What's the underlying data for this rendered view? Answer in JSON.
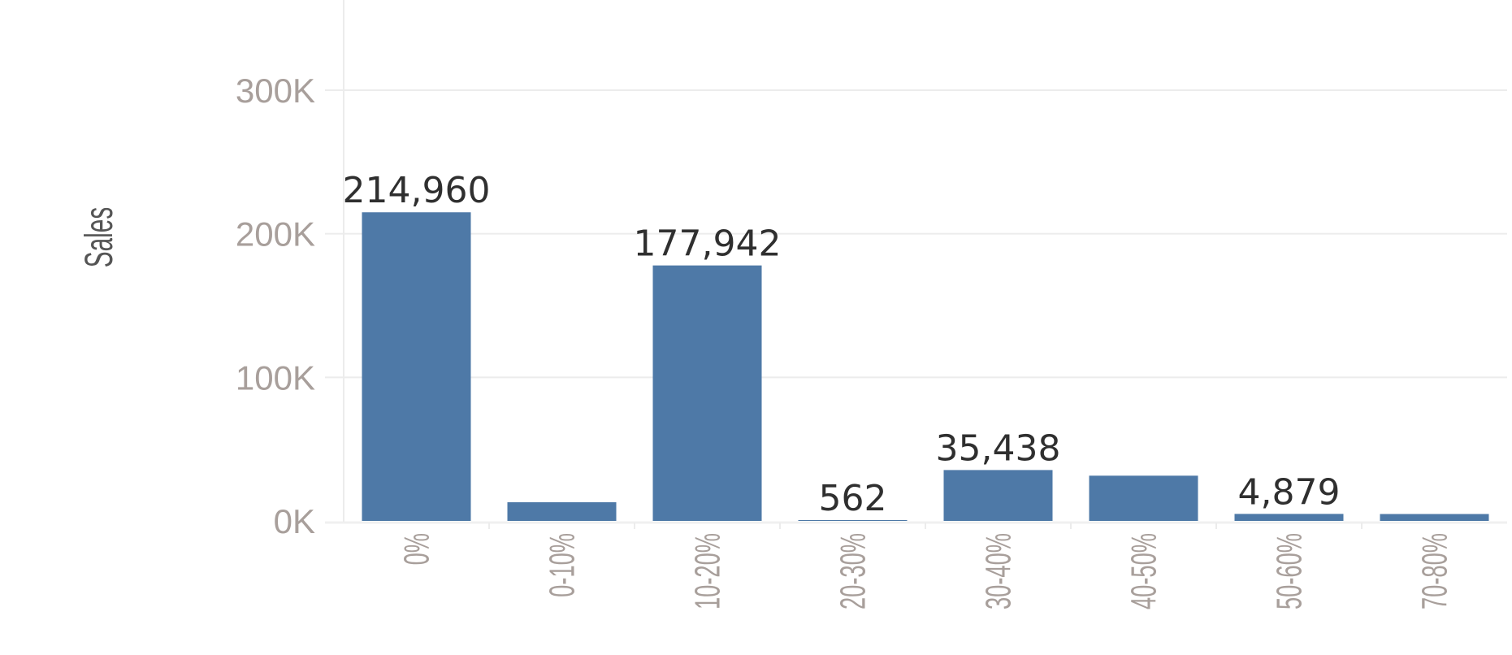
{
  "chart_data": {
    "type": "bar",
    "title": "",
    "xlabel": "",
    "ylabel": "Sales",
    "categories": [
      "0%",
      "0-10%",
      "10-20%",
      "20-30%",
      "30-40%",
      "40-50%",
      "50-60%",
      "70-80%"
    ],
    "values": [
      214960,
      13000,
      177942,
      562,
      35438,
      31500,
      4879,
      4800
    ],
    "data_labels": [
      "214,960",
      "",
      "177,942",
      "562",
      "35,438",
      "",
      "4,879",
      ""
    ],
    "y_ticks": [
      {
        "value": 0,
        "label": "0K"
      },
      {
        "value": 100000,
        "label": "100K"
      },
      {
        "value": 200000,
        "label": "200K"
      },
      {
        "value": 300000,
        "label": "300K"
      }
    ],
    "ylim": [
      0,
      360000
    ],
    "grid": true,
    "bar_color": "#4e79a7"
  }
}
